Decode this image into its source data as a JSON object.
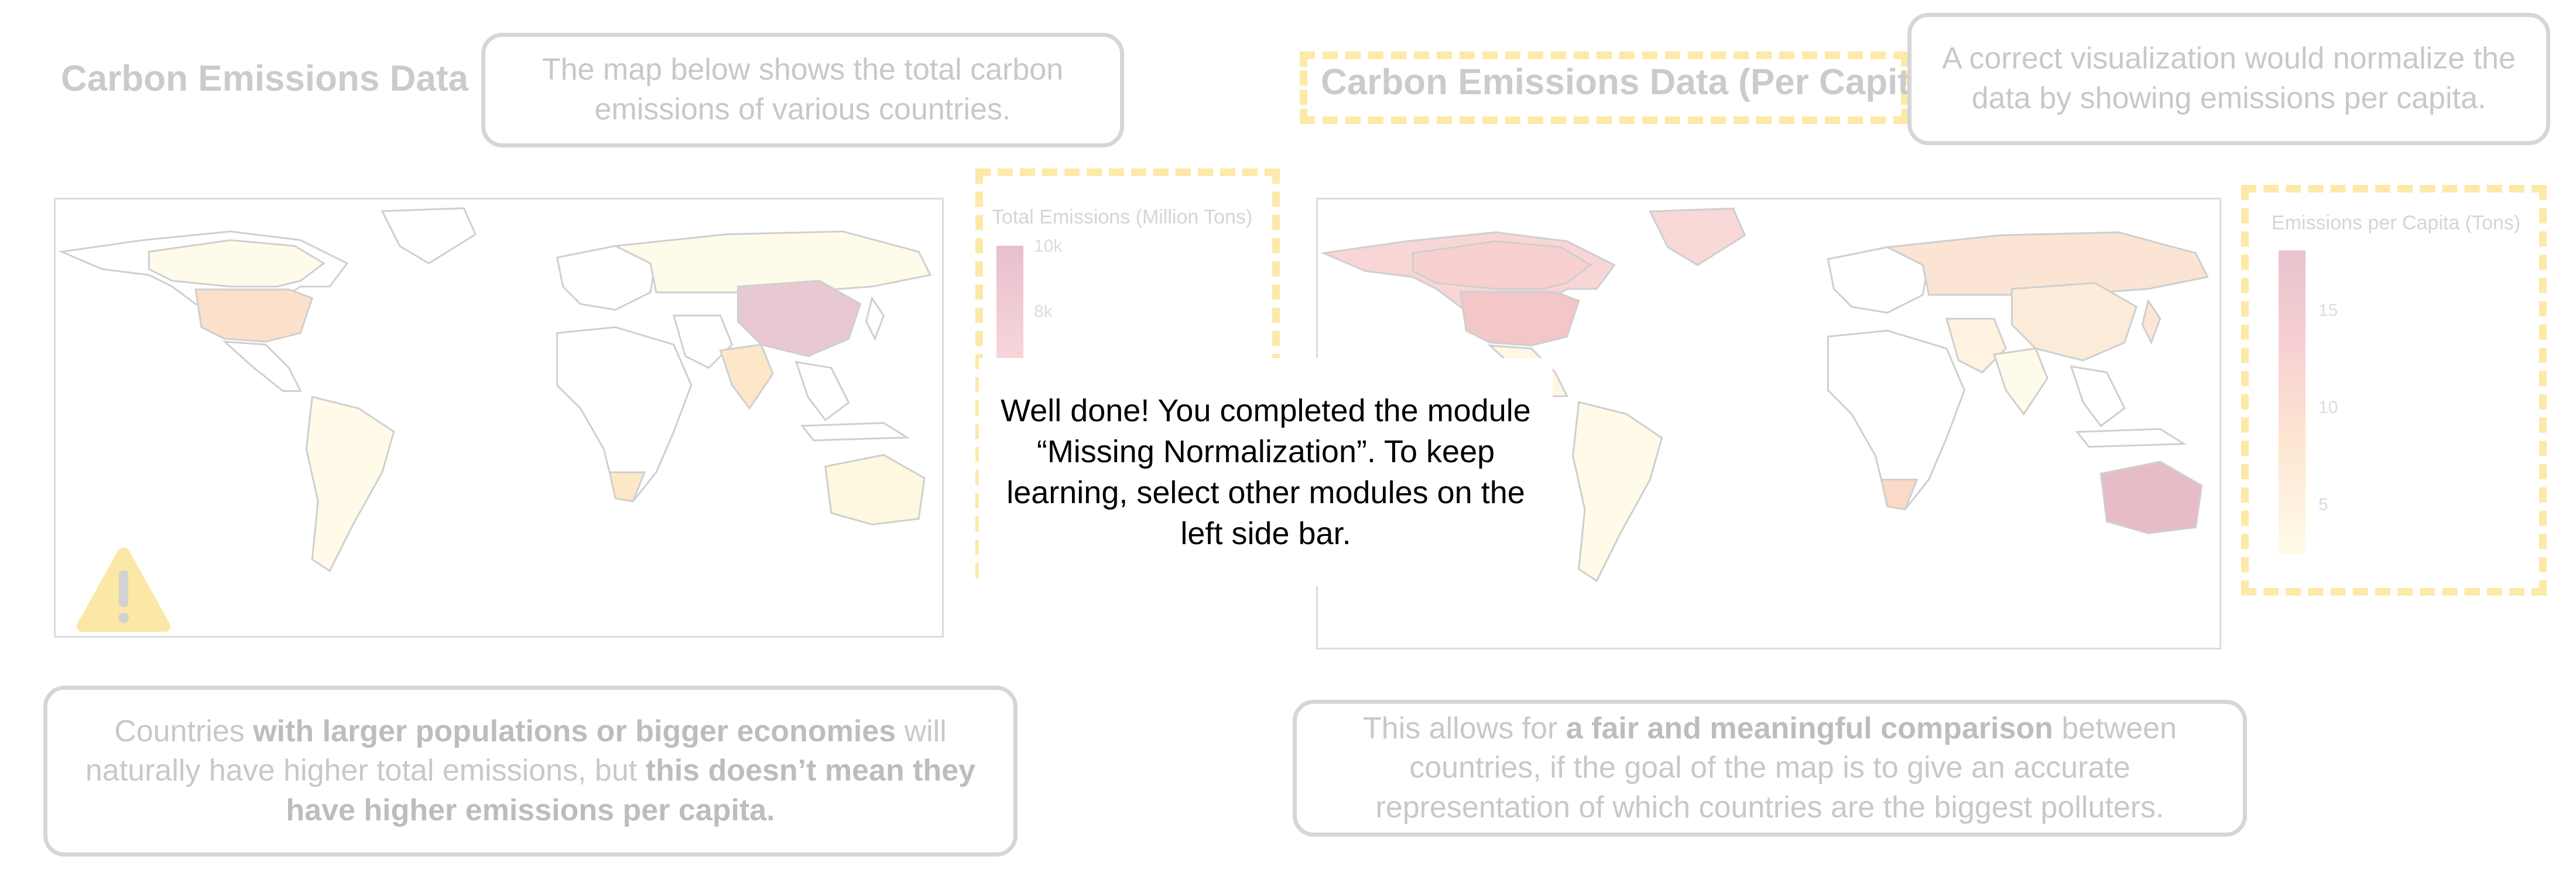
{
  "left_panel": {
    "title": "Carbon Emissions Data",
    "top_callout": "The map below shows the total carbon emissions of various countries.",
    "legend": {
      "title": "Total Emissions (Million Tons)",
      "ticks": [
        "10k",
        "8k"
      ]
    },
    "bottom_callout": {
      "pre1": "Countries ",
      "bold1": "with larger populations or bigger economies",
      "mid": " will naturally have higher total emissions, but ",
      "bold2": "this doesn’t mean they have higher emissions per capita."
    }
  },
  "right_panel": {
    "title": "Carbon Emissions Data (Per Capita)",
    "top_callout": "A correct visualization would normalize the data by showing emissions per capita.",
    "legend": {
      "title": "Emissions per Capita (Tons)",
      "ticks": [
        "15",
        "10",
        "5"
      ]
    },
    "bottom_callout": {
      "pre1": "This allows for ",
      "bold1": "a fair and meaningful comparison",
      "rest": " between countries, if the goal of the map is to give an accurate representation of which countries are the biggest polluters."
    }
  },
  "modal": {
    "message": "Well done! You completed the module “Missing Normalization”. To keep learning, select other modules on the left side bar."
  },
  "colors": {
    "map_stroke": "#cfcfcf",
    "legend_dash": "#fde9a8",
    "warning": "#fbe7a6"
  }
}
